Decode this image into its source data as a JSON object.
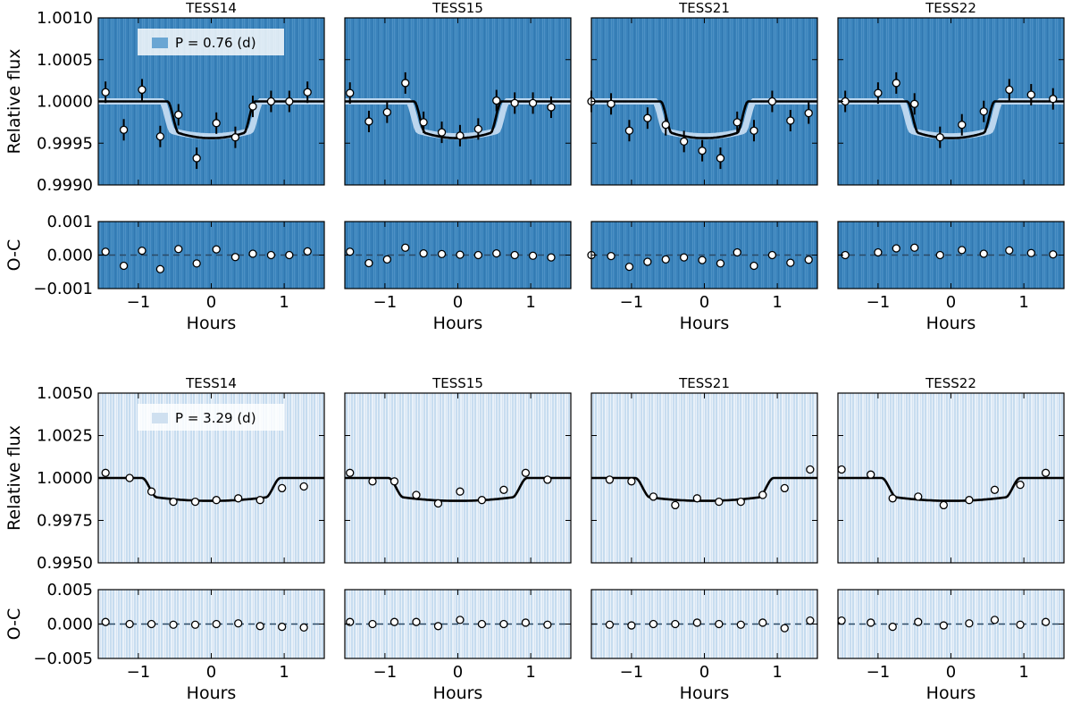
{
  "chart_data": {
    "type": "scatter",
    "x_label": "Hours",
    "top_row_xticks": [
      "−1",
      "0",
      "1"
    ],
    "bottom_row_xticks": [
      "−1",
      "0",
      "1"
    ],
    "x_tick_values": [
      -1,
      0,
      1
    ],
    "xlim": [
      -1.55,
      1.55
    ],
    "groups": [
      {
        "legend": "P = 0.76 (d)",
        "flux_label": "Relative flux",
        "oc_label": "O-C",
        "flux_ylim": [
          0.999,
          1.001
        ],
        "flux_ticks": [
          "1.0010",
          "1.0005",
          "1.0000",
          "0.9995",
          "0.9990"
        ],
        "flux_tick_values": [
          1.001,
          1.0005,
          1.0,
          0.9995,
          0.999
        ],
        "oc_ylim": [
          -0.001,
          0.001
        ],
        "oc_ticks": [
          "0.001",
          "0.000",
          "−0.001"
        ],
        "oc_tick_values": [
          0.001,
          0.0,
          -0.001
        ],
        "model": {
          "depth": 0.00044,
          "half_duration": 0.6,
          "ingress": 0.15
        },
        "sectors": [
          {
            "title": "TESS14",
            "x": [
              -1.45,
              -1.2,
              -0.95,
              -0.7,
              -0.45,
              -0.2,
              0.07,
              0.33,
              0.57,
              0.82,
              1.07,
              1.32
            ],
            "flux": [
              1.00011,
              0.99966,
              1.00014,
              0.99958,
              0.99984,
              0.99932,
              0.99974,
              0.99957,
              0.99994,
              1.0,
              1.0,
              1.00011
            ],
            "oc": [
              0.0001,
              -0.00032,
              0.00013,
              -0.00042,
              0.00018,
              -0.00025,
              0.00017,
              -6e-05,
              4e-05,
              0.0,
              0.0,
              0.00011
            ]
          },
          {
            "title": "TESS15",
            "x": [
              -1.48,
              -1.22,
              -0.97,
              -0.72,
              -0.47,
              -0.22,
              0.03,
              0.28,
              0.53,
              0.78,
              1.03,
              1.28
            ],
            "flux": [
              1.0001,
              0.99976,
              0.99987,
              1.00022,
              0.99975,
              0.99963,
              0.99959,
              0.99967,
              1.00001,
              0.99998,
              0.99998,
              0.99993
            ],
            "oc": [
              0.0001,
              -0.00024,
              -0.00013,
              0.00022,
              5e-05,
              3e-05,
              1e-05,
              0.0,
              5e-05,
              0.0,
              -2e-05,
              -7e-05
            ]
          },
          {
            "title": "TESS21",
            "x": [
              -1.55,
              -1.28,
              -1.03,
              -0.78,
              -0.53,
              -0.28,
              -0.03,
              0.22,
              0.45,
              0.68,
              0.93,
              1.18,
              1.43
            ],
            "flux": [
              1.0,
              0.99997,
              0.99965,
              0.9998,
              0.99972,
              0.99952,
              0.99941,
              0.99932,
              0.99975,
              0.99965,
              1.0,
              0.99977,
              0.99986
            ],
            "oc": [
              0.0,
              -3e-05,
              -0.00035,
              -0.0002,
              -0.00013,
              -7e-05,
              -0.00015,
              -0.00025,
              8e-05,
              -0.00032,
              0.0,
              -0.00023,
              -0.00014
            ]
          },
          {
            "title": "TESS22",
            "x": [
              -1.45,
              -1.0,
              -0.75,
              -0.5,
              -0.15,
              0.15,
              0.45,
              0.8,
              1.1,
              1.4
            ],
            "flux": [
              1.0,
              1.0001,
              1.00022,
              0.99997,
              0.99957,
              0.99972,
              0.99988,
              1.00014,
              1.00008,
              1.00003
            ],
            "oc": [
              0.0,
              8e-05,
              0.0002,
              0.00022,
              0.0,
              0.00015,
              4e-05,
              0.00014,
              6e-05,
              2e-05
            ]
          }
        ]
      },
      {
        "legend": "P = 3.29 (d)",
        "flux_label": "Relative flux",
        "oc_label": "O-C",
        "flux_ylim": [
          0.995,
          1.005
        ],
        "flux_ticks": [
          "1.0050",
          "1.0025",
          "1.0000",
          "0.9975",
          "0.9950"
        ],
        "flux_tick_values": [
          1.005,
          1.0025,
          1.0,
          0.9975,
          0.995
        ],
        "oc_ylim": [
          -0.005,
          0.005
        ],
        "oc_ticks": [
          "0.005",
          "0.000",
          "−0.005"
        ],
        "oc_tick_values": [
          0.005,
          0.0,
          -0.005
        ],
        "model": {
          "depth": 0.00135,
          "half_duration": 0.95,
          "ingress": 0.2
        },
        "sectors": [
          {
            "title": "TESS14",
            "x": [
              -1.45,
              -1.12,
              -0.82,
              -0.52,
              -0.22,
              0.07,
              0.37,
              0.67,
              0.97,
              1.27
            ],
            "flux": [
              1.0003,
              1.0,
              0.9992,
              0.9986,
              0.9986,
              0.9987,
              0.9988,
              0.9987,
              0.9994,
              0.9995
            ],
            "oc": [
              0.0003,
              0.0,
              0.0,
              -0.0001,
              -0.0001,
              0.0,
              0.0001,
              -0.0003,
              -0.0004,
              -0.0005
            ]
          },
          {
            "title": "TESS15",
            "x": [
              -1.48,
              -1.17,
              -0.87,
              -0.57,
              -0.27,
              0.03,
              0.33,
              0.63,
              0.93,
              1.23
            ],
            "flux": [
              1.0003,
              0.9998,
              0.9998,
              0.999,
              0.9985,
              0.9992,
              0.9987,
              0.9993,
              1.0003,
              0.9999
            ],
            "oc": [
              0.0003,
              0.0,
              0.0003,
              0.0003,
              -0.0003,
              0.0006,
              0.0,
              0.0,
              0.0002,
              -0.0001
            ]
          },
          {
            "title": "TESS21",
            "x": [
              -1.3,
              -1.0,
              -0.7,
              -0.4,
              -0.1,
              0.2,
              0.5,
              0.8,
              1.1,
              1.45
            ],
            "flux": [
              0.9999,
              0.9998,
              0.9989,
              0.9984,
              0.9988,
              0.9986,
              0.9986,
              0.999,
              0.9994,
              1.0005
            ],
            "oc": [
              -0.0001,
              -0.0002,
              0.0,
              0.0,
              0.0002,
              0.0,
              -0.0001,
              0.0002,
              -0.0006,
              0.0005
            ]
          },
          {
            "title": "TESS22",
            "x": [
              -1.5,
              -1.1,
              -0.8,
              -0.45,
              -0.1,
              0.25,
              0.6,
              0.95,
              1.3
            ],
            "flux": [
              1.0005,
              1.0002,
              0.9988,
              0.9989,
              0.9984,
              0.9987,
              0.9993,
              0.9996,
              1.0003
            ],
            "oc": [
              0.0005,
              0.0002,
              -0.0004,
              0.0003,
              -0.0002,
              0.0001,
              0.0006,
              -0.0001,
              0.0003
            ]
          }
        ]
      }
    ]
  }
}
